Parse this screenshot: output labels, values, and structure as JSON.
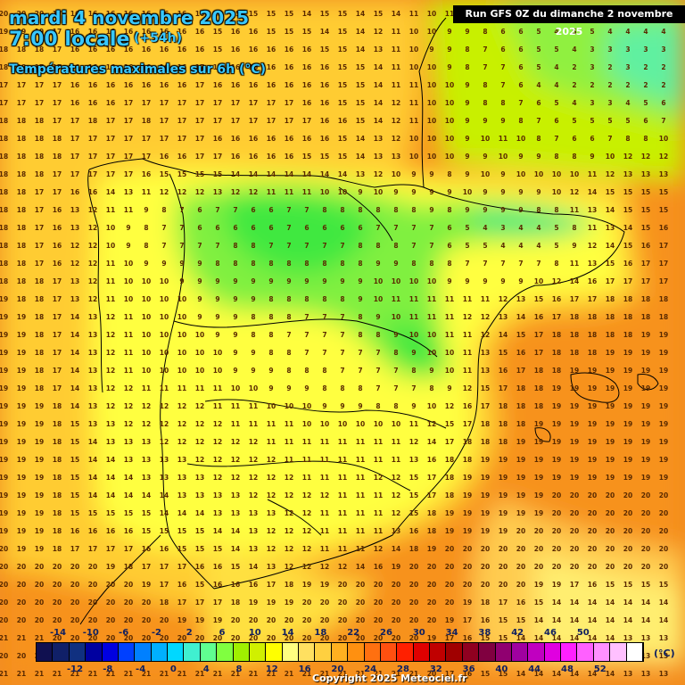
{
  "header": {
    "date": "mardi 4 novembre 2025",
    "time": "7:00 locale",
    "lead": "(+54h)",
    "subtitle": "Températures maximales sur 6h (°C)",
    "run": "Run GFS 0Z du dimanche 2 novembre 2025"
  },
  "legend": {
    "unit": "(°C)",
    "ticks_top": [
      "-14",
      "-10",
      "-6",
      "-2",
      "2",
      "6",
      "10",
      "14",
      "18",
      "22",
      "26",
      "30",
      "34",
      "38",
      "42",
      "46",
      "50"
    ],
    "ticks_bottom": [
      "-12",
      "-8",
      "-4",
      "0",
      "4",
      "8",
      "12",
      "16",
      "20",
      "24",
      "28",
      "32",
      "36",
      "40",
      "44",
      "48",
      "52"
    ],
    "colors": [
      "#101050",
      "#102068",
      "#103080",
      "#0000a0",
      "#0000e0",
      "#0040ff",
      "#0080ff",
      "#00b0ff",
      "#00d8ff",
      "#40f0d0",
      "#60ff90",
      "#80ff40",
      "#a0f000",
      "#d0f000",
      "#ffff00",
      "#ffff80",
      "#ffe060",
      "#ffd040",
      "#ffb020",
      "#ff9010",
      "#ff7010",
      "#ff5010",
      "#ff2000",
      "#e00000",
      "#c00000",
      "#a00000",
      "#900020",
      "#800040",
      "#900070",
      "#a000a0",
      "#c000c0",
      "#e000e0",
      "#ff20ff",
      "#ff60ff",
      "#ff90ff",
      "#ffc0ff",
      "#ffffff"
    ]
  },
  "copyright": "Copyright 2025 Meteociel.fr",
  "labels": {
    "1": "20 20 20 17 16 16 16 16 16 16 16 16 15 15 15 15 15 14 15 15 14 15 14 11 10 11 9 9 9 8 8 7 7 6 6 5 4 4",
    "2": "19 19 19 17 16 16 16 16 16 16 16 16 15 16 16 15 15 15 14 15 14 12 11 10 10 9 9 8 6 6 5 4 5 5 4 4 4 4",
    "3": "18 18 18 17 16 16 16 16 16 16 16 16 15 16 16 16 16 16 15 15 14 13 11 10 9 9 8 7 6 6 5 5 4 3 3 3 3 3",
    "4": "18 18 17 17 16 16 16 16 16 16 16 17 16 16 16 16 16 16 16 15 15 14 11 10 10 9 8 7 7 6 5 4 2 3 2 3 2 2",
    "5": "17 17 17 17 16 16 16 16 16 16 16 17 16 16 16 16 16 16 16 15 15 14 11 11 10 10 9 8 7 6 4 4 2 2 2 2 2 2",
    "6": "17 17 17 17 16 16 16 17 17 17 17 17 17 17 17 17 17 16 16 15 15 14 12 11 10 10 9 8 8 7 6 5 4 3 3 4 5 6",
    "7": "18 18 18 17 17 18 17 17 18 17 17 17 17 17 17 17 17 17 16 16 15 14 12 11 10 10 9 9 9 8 7 6 5 5 5 5 6 7",
    "8": "18 18 18 18 17 17 17 17 17 17 17 17 16 16 16 16 16 16 16 15 14 13 12 10 10 10 9 10 11 10 8 7 6 6 7 8 8 10",
    "9": "18 18 18 18 17 17 17 17 17 16 16 17 17 16 16 16 16 15 15 15 14 13 13 10 10 10 9 9 10 9 9 8 8 9 10 12 12 12",
    "10": "18 18 18 17 17 17 17 17 16 15 15 15 15 14 14 14 14 14 14 14 13 12 10 9 9 8 9 10 9 10 10 10 10 11 12 13 13 13",
    "11": "18 18 17 17 16 16 14 13 11 12 12 12 13 12 12 11 11 11 10 10 9 10 9 9 9 9 10 9 9 9 9 10 12 14 15 15 15 15",
    "12": "18 18 17 16 13 12 11 11 9 8 7 6 7 7 6 6 7 7 8 8 8 8 8 8 9 8 9 9 9 9 8 8 11 13 14 15 15 15",
    "13": "18 18 17 16 13 12 10 9 8 7 7 6 6 6 6 6 7 6 6 6 6 7 7 7 7 6 5 4 3 4 4 5 8 11 13 14 15 16",
    "14": "18 18 17 16 12 12 10 9 8 7 7 7 7 8 8 7 7 7 7 7 8 8 8 7 7 6 5 5 4 4 4 5 9 12 14 15 16 17",
    "15": "18 18 17 16 12 12 11 10 9 9 9 9 8 8 8 8 8 8 8 8 8 9 9 8 8 8 7 7 7 7 7 8 11 13 15 16 17 17",
    "16": "18 18 18 17 13 12 11 10 10 10 9 9 9 9 9 9 9 9 9 9 9 10 10 10 10 9 9 9 9 9 10 12 14 16 17 17 17 17",
    "17": "19 18 18 17 13 12 11 10 10 10 10 9 9 9 9 8 8 8 8 8 9 10 11 11 11 11 11 11 12 13 15 16 17 17 18 18 18 18",
    "18": "19 19 18 17 14 13 12 11 10 10 10 9 9 9 8 8 8 7 7 7 8 9 10 11 11 11 12 12 13 14 16 17 18 18 18 18 18 18",
    "19": "19 19 18 17 14 13 12 11 10 10 10 10 9 9 8 8 7 7 7 7 8 8 9 10 10 11 11 12 14 15 17 18 18 18 18 18 19 19",
    "20": "19 19 18 17 14 13 12 11 10 10 10 10 10 9 9 8 8 7 7 7 7 7 8 9 10 10 11 13 15 16 17 18 18 18 19 19 19 19",
    "21": "19 19 18 17 14 13 12 11 10 10 10 10 10 9 9 9 8 8 8 7 7 7 7 8 9 10 11 13 16 17 18 18 19 19 19 19 19 19",
    "22": "19 19 18 17 14 13 12 12 11 11 11 11 11 10 10 9 9 9 8 8 8 7 7 7 8 9 12 15 17 18 18 19 19 19 19 19 19 19",
    "23": "19 19 19 18 14 13 12 12 12 12 12 12 11 11 11 10 10 10 9 9 9 8 8 9 10 12 16 17 18 18 18 19 19 19 19 19 19 19",
    "24": "19 19 19 18 15 13 13 12 12 12 12 12 12 11 11 11 11 10 10 10 10 10 10 11 12 15 17 18 18 18 19 19 19 19 19 19 19 19",
    "25": "19 19 19 18 15 14 13 13 13 12 12 12 12 12 12 11 11 11 11 11 11 11 11 12 14 17 18 18 18 19 19 19 19 19 19 19 19 19",
    "26": "19 19 19 18 15 14 14 13 13 13 13 12 12 12 12 12 11 11 11 11 11 11 11 13 16 18 18 19 19 19 19 19 19 19 19 19 19 19",
    "27": "19 19 19 18 15 14 14 14 13 13 13 13 12 12 12 12 12 11 11 11 11 12 12 15 17 18 19 19 19 19 19 19 19 19 19 19 19 19",
    "28": "19 19 19 18 15 14 14 14 14 14 13 13 13 13 12 12 12 12 12 11 11 11 12 15 17 18 19 19 19 19 19 20 20 20 20 20 20 20",
    "29": "19 19 19 18 15 15 15 15 15 14 14 14 13 13 13 13 12 12 11 11 11 11 12 15 18 19 19 19 19 19 19 20 20 20 20 20 20 20",
    "30": "19 19 19 18 16 16 16 16 15 15 15 15 14 14 13 12 12 12 11 11 11 11 13 16 18 19 19 19 19 20 20 20 20 20 20 20 20 20",
    "31": "20 19 19 18 17 17 17 17 16 16 15 15 15 14 13 12 12 12 11 11 11 12 14 18 19 20 20 20 20 20 20 20 20 20 20 20 20 20",
    "32": "20 20 20 20 20 20 19 18 17 17 17 16 16 15 14 13 12 12 12 12 14 16 19 20 20 20 20 20 20 20 20 20 20 20 20 20 20 20",
    "33": "20 20 20 20 20 20 20 20 19 17 16 15 16 16 16 17 18 19 19 20 20 20 20 20 20 20 20 20 20 20 19 19 17 16 15 15 15 15",
    "34": "20 20 20 20 20 20 20 20 20 18 17 17 17 18 19 19 19 20 20 20 20 20 20 20 20 20 19 18 17 16 15 14 14 14 14 14 14 14",
    "35": "20 20 20 20 20 20 20 20 20 20 19 19 19 20 20 20 20 20 20 20 20 20 20 20 20 19 17 16 15 15 14 14 14 14 14 14 14 14",
    "36": "21 21 21 20 20 20 20 20 20 20 20 20 20 20 20 20 20 20 20 20 20 20 20 20 19 17 16 15 15 14 14 14 14 14 14 13 13 13",
    "37": "20 20 20 20 20 20 20 20 20 20 20 20 20 20 20 20 20 20 20 20 20 20 20 20 19 17 16 15 15 14 14 14 14 14 14 13 13 13",
    "38": "21 21 21 21 21 21 21 21 21 21 21 21 21 21 21 21 21 21 21 21 21 21 21 21 20 17 16 15 15 14 14 14 14 14 14 13 13 13"
  }
}
